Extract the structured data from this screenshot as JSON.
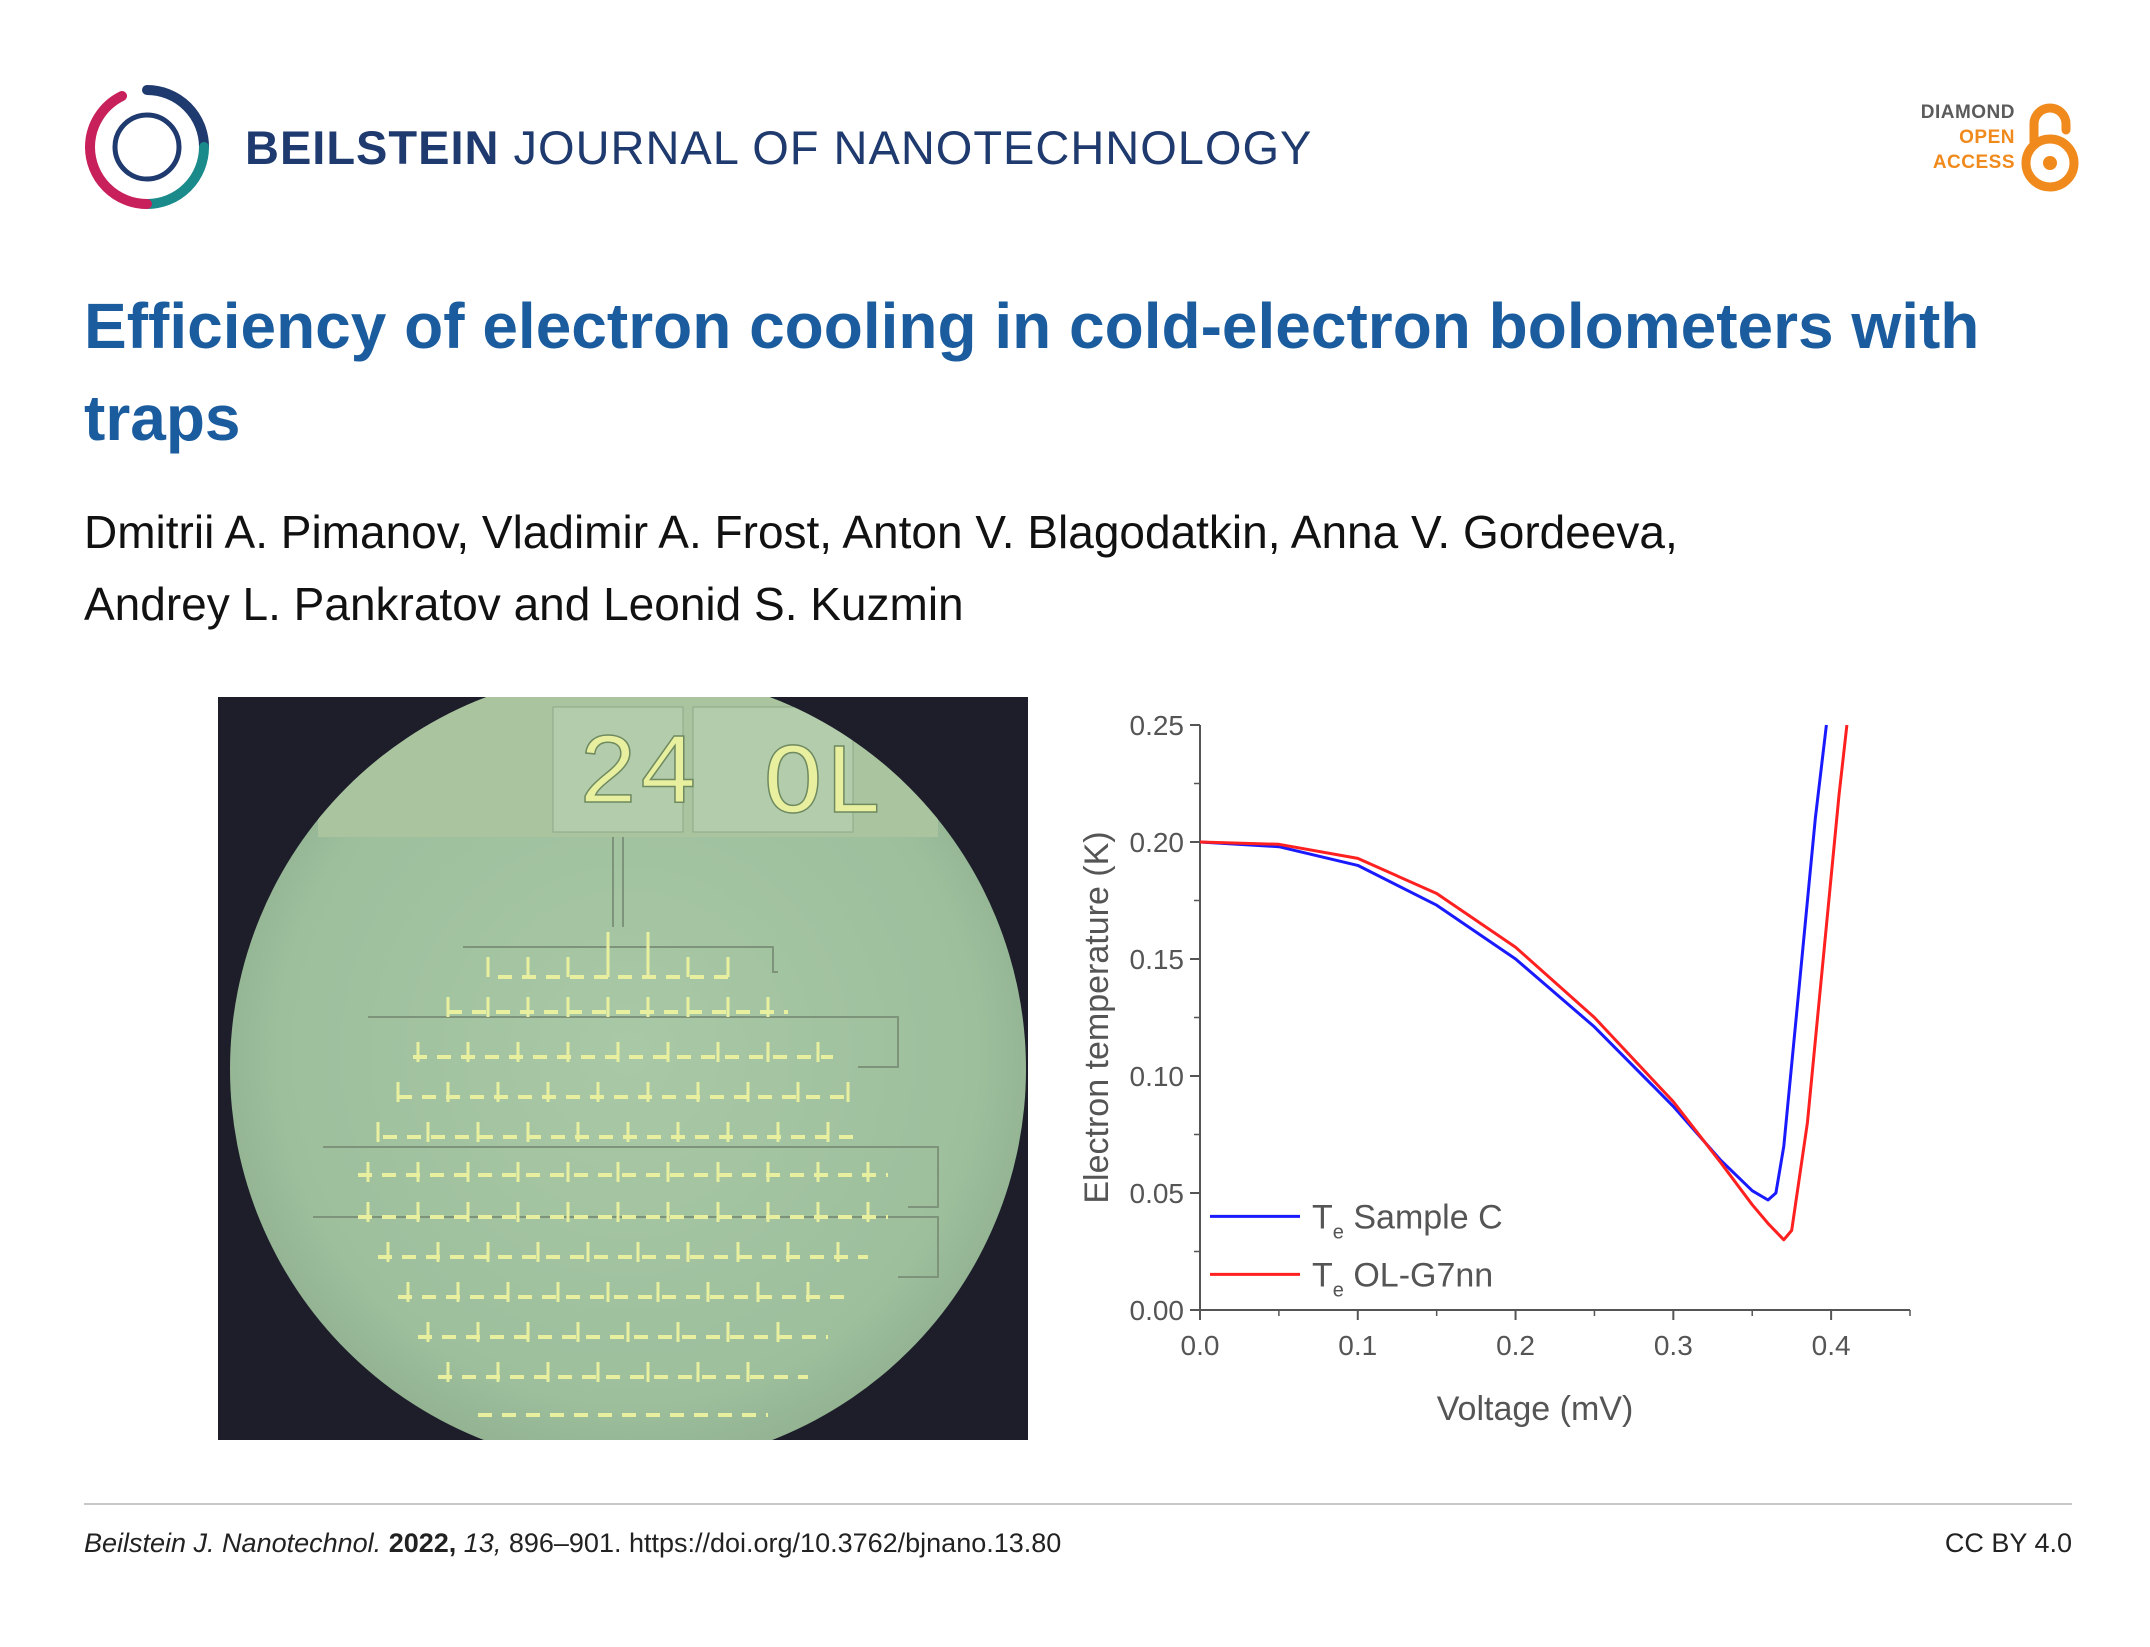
{
  "header": {
    "journal_bold": "BEILSTEIN",
    "journal_rest": "JOURNAL OF NANOTECHNOLOGY",
    "badge_line1": "DIAMOND",
    "badge_line2": "OPEN",
    "badge_line3": "ACCESS"
  },
  "article": {
    "title": "Efficiency of electron cooling in cold-electron bolometers with traps",
    "authors_line1": "Dmitrii A. Pimanov, Vladimir A. Frost, Anton V. Blagodatkin, Anna V. Gordeeva,",
    "authors_line2": "Andrey L. Pankratov and Leonid S. Kuzmin"
  },
  "micrograph": {
    "label_left": "24",
    "label_right": "OL"
  },
  "chart_data": {
    "type": "line",
    "xlabel": "Voltage (mV)",
    "ylabel": "Electron temperature (K)",
    "xlim": [
      0,
      0.45
    ],
    "ylim": [
      0,
      0.25
    ],
    "xticks": [
      "0.0",
      "0.1",
      "0.2",
      "0.3",
      "0.4"
    ],
    "yticks": [
      "0.00",
      "0.05",
      "0.10",
      "0.15",
      "0.20",
      "0.25"
    ],
    "legend_position": "bottom-left",
    "series": [
      {
        "name_main": "T",
        "name_sub": "e",
        "name_rest": " Sample C",
        "color": "#1a1aff",
        "x": [
          0,
          0.05,
          0.1,
          0.15,
          0.2,
          0.25,
          0.3,
          0.33,
          0.35,
          0.36,
          0.365,
          0.37,
          0.38,
          0.39,
          0.397
        ],
        "y": [
          0.2,
          0.198,
          0.19,
          0.173,
          0.15,
          0.121,
          0.087,
          0.064,
          0.051,
          0.047,
          0.05,
          0.07,
          0.14,
          0.21,
          0.25
        ]
      },
      {
        "name_main": "T",
        "name_sub": "e",
        "name_rest": " OL-G7nn",
        "color": "#ff2020",
        "x": [
          0,
          0.05,
          0.1,
          0.15,
          0.2,
          0.25,
          0.3,
          0.33,
          0.35,
          0.36,
          0.37,
          0.375,
          0.385,
          0.395,
          0.405,
          0.41
        ],
        "y": [
          0.2,
          0.199,
          0.193,
          0.178,
          0.155,
          0.125,
          0.089,
          0.063,
          0.045,
          0.037,
          0.03,
          0.034,
          0.08,
          0.15,
          0.22,
          0.25
        ]
      }
    ]
  },
  "footer": {
    "journal_abbrev": "Beilstein J. Nanotechnol.",
    "year": "2022,",
    "volume": "13,",
    "pages_doi": "896–901. https://doi.org/10.3762/bjnano.13.80",
    "license": "CC BY 4.0"
  }
}
